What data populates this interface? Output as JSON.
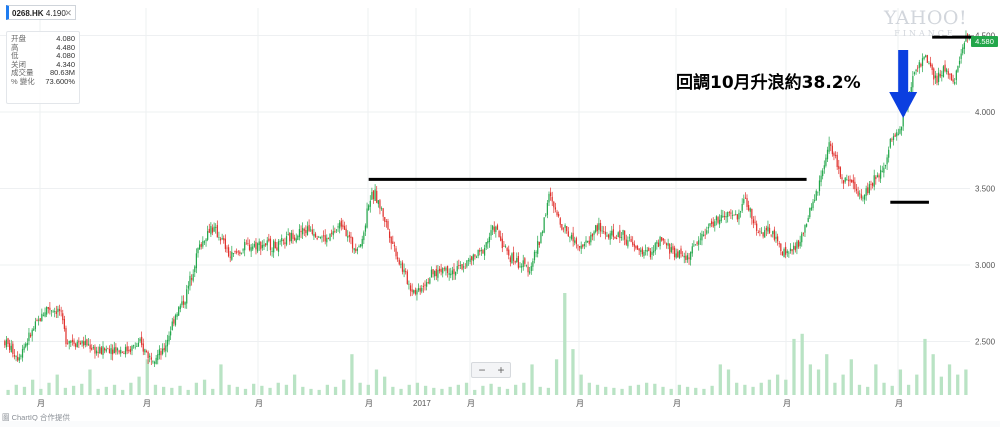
{
  "header": {
    "symbol": "0268.HK",
    "price": "4.190",
    "close_glyph": "✕"
  },
  "info_panel": [
    {
      "label": "开盘",
      "value": "4.080"
    },
    {
      "label": "高",
      "value": "4.480"
    },
    {
      "label": "低",
      "value": "4.080"
    },
    {
      "label": "关闭",
      "value": "4.340"
    },
    {
      "label": "成交量",
      "value": "80.63M"
    },
    {
      "label": "% 變化",
      "value": "73.600%"
    }
  ],
  "logo": {
    "line1": "YAHOO!",
    "line2": "FINANCE"
  },
  "annotation": "回調10月升浪約38.2%",
  "last_price_tag": "4.580",
  "zoom": {
    "minus": "−",
    "plus": "+"
  },
  "footer_text": "圖 ChartIQ 合作提供",
  "colors": {
    "up": "#22a64a",
    "down": "#e0302c",
    "volume": "#b9e3c4",
    "arrow": "#0b3fe0",
    "grid": "#eef0f2"
  },
  "chart_data": {
    "type": "candlestick",
    "ylim": [
      2.15,
      4.68
    ],
    "y_ticks": [
      "4.500",
      "4.000",
      "3.500",
      "3.000",
      "2.500"
    ],
    "x_tick_labels": [
      "月",
      "月",
      "月",
      "月",
      "2017",
      "月",
      "月",
      "月",
      "月",
      "月"
    ],
    "price_path": [
      [
        0,
        2.5
      ],
      [
        8,
        2.4
      ],
      [
        18,
        2.58
      ],
      [
        26,
        2.72
      ],
      [
        34,
        2.7
      ],
      [
        38,
        2.52
      ],
      [
        44,
        2.5
      ],
      [
        52,
        2.48
      ],
      [
        58,
        2.43
      ],
      [
        66,
        2.46
      ],
      [
        74,
        2.44
      ],
      [
        84,
        2.48
      ],
      [
        90,
        2.4
      ],
      [
        98,
        2.42
      ],
      [
        106,
        2.68
      ],
      [
        112,
        2.78
      ],
      [
        120,
        3.1
      ],
      [
        128,
        3.25
      ],
      [
        134,
        3.18
      ],
      [
        140,
        3.05
      ],
      [
        150,
        3.12
      ],
      [
        160,
        3.14
      ],
      [
        170,
        3.12
      ],
      [
        180,
        3.2
      ],
      [
        190,
        3.24
      ],
      [
        200,
        3.16
      ],
      [
        210,
        3.28
      ],
      [
        216,
        3.12
      ],
      [
        222,
        3.15
      ],
      [
        226,
        3.42
      ],
      [
        230,
        3.46
      ],
      [
        236,
        3.3
      ],
      [
        244,
        3.05
      ],
      [
        252,
        2.85
      ],
      [
        256,
        2.83
      ],
      [
        264,
        2.92
      ],
      [
        272,
        2.98
      ],
      [
        280,
        2.96
      ],
      [
        288,
        3.02
      ],
      [
        296,
        3.08
      ],
      [
        304,
        3.25
      ],
      [
        312,
        3.08
      ],
      [
        320,
        3.0
      ],
      [
        326,
        2.98
      ],
      [
        332,
        3.15
      ],
      [
        338,
        3.45
      ],
      [
        344,
        3.3
      ],
      [
        352,
        3.18
      ],
      [
        360,
        3.12
      ],
      [
        368,
        3.25
      ],
      [
        376,
        3.18
      ],
      [
        384,
        3.2
      ],
      [
        392,
        3.1
      ],
      [
        400,
        3.08
      ],
      [
        408,
        3.15
      ],
      [
        416,
        3.08
      ],
      [
        424,
        3.05
      ],
      [
        432,
        3.18
      ],
      [
        440,
        3.28
      ],
      [
        448,
        3.32
      ],
      [
        456,
        3.32
      ],
      [
        460,
        3.45
      ],
      [
        464,
        3.3
      ],
      [
        470,
        3.2
      ],
      [
        476,
        3.22
      ],
      [
        482,
        3.1
      ],
      [
        488,
        3.08
      ],
      [
        494,
        3.15
      ],
      [
        502,
        3.4
      ],
      [
        508,
        3.6
      ],
      [
        512,
        3.78
      ],
      [
        516,
        3.7
      ],
      [
        520,
        3.55
      ],
      [
        526,
        3.52
      ],
      [
        532,
        3.45
      ],
      [
        540,
        3.55
      ],
      [
        546,
        3.65
      ],
      [
        550,
        3.8
      ],
      [
        556,
        3.9
      ],
      [
        560,
        4.05
      ],
      [
        566,
        4.3
      ],
      [
        572,
        4.35
      ],
      [
        578,
        4.2
      ],
      [
        584,
        4.28
      ],
      [
        590,
        4.22
      ],
      [
        596,
        4.45
      ],
      [
        600,
        4.52
      ]
    ],
    "volumes": [
      0.05,
      0.1,
      0.08,
      0.15,
      0.06,
      0.12,
      0.2,
      0.07,
      0.09,
      0.11,
      0.25,
      0.06,
      0.08,
      0.1,
      0.05,
      0.12,
      0.18,
      0.35,
      0.1,
      0.08,
      0.07,
      0.09,
      0.05,
      0.12,
      0.15,
      0.06,
      0.3,
      0.1,
      0.08,
      0.06,
      0.11,
      0.09,
      0.07,
      0.12,
      0.1,
      0.2,
      0.08,
      0.06,
      0.05,
      0.1,
      0.08,
      0.15,
      0.4,
      0.12,
      0.1,
      0.25,
      0.18,
      0.08,
      0.06,
      0.1,
      0.12,
      0.09,
      0.07,
      0.06,
      0.08,
      0.1,
      0.12,
      0.05,
      0.09,
      0.11,
      0.08,
      0.06,
      0.1,
      0.12,
      0.3,
      0.08,
      0.07,
      0.35,
      1.0,
      0.45,
      0.2,
      0.12,
      0.1,
      0.08,
      0.07,
      0.06,
      0.09,
      0.1,
      0.12,
      0.11,
      0.08,
      0.06,
      0.1,
      0.08,
      0.07,
      0.06,
      0.09,
      0.3,
      0.25,
      0.12,
      0.1,
      0.08,
      0.12,
      0.15,
      0.2,
      0.15,
      0.55,
      0.6,
      0.3,
      0.25,
      0.4,
      0.12,
      0.2,
      0.35,
      0.1,
      0.08,
      0.3,
      0.12,
      0.09,
      0.25,
      0.1,
      0.2,
      0.55,
      0.4,
      0.18,
      0.3,
      0.2,
      0.25
    ],
    "resistance_line": {
      "x_from": 226,
      "x_to": 498,
      "y": 3.56
    },
    "low_line": {
      "x_from": 550,
      "x_to": 574,
      "y": 3.41
    },
    "high_line": {
      "x_from": 576,
      "x_to": 602,
      "y": 4.49
    },
    "arrow_x": 558
  }
}
